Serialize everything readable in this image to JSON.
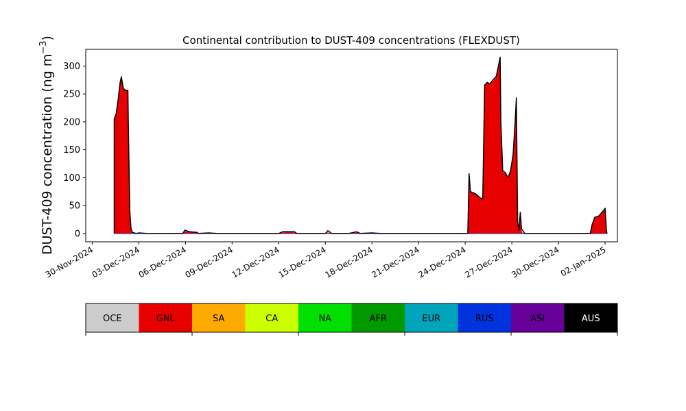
{
  "chart_data": {
    "type": "area",
    "title": "Continental contribution to DUST-409 concentrations (FLEXDUST)",
    "ylabel_main": "DUST-409 concentration (ng m",
    "ylabel_sup": "−3",
    "ylabel_close": ")",
    "xlabel": "",
    "ylim": [
      -15,
      330
    ],
    "xlim": [
      "2024-11-29T14:00",
      "2025-01-02T19:00"
    ],
    "x_ticks": [
      "2024-11-30",
      "2024-12-03",
      "2024-12-06",
      "2024-12-09",
      "2024-12-12",
      "2024-12-15",
      "2024-12-18",
      "2024-12-21",
      "2024-12-24",
      "2024-12-27",
      "2024-12-30",
      "2025-01-02"
    ],
    "x_tick_labels": [
      "30-Nov-2024",
      "03-Dec-2024",
      "06-Dec-2024",
      "09-Dec-2024",
      "12-Dec-2024",
      "15-Dec-2024",
      "18-Dec-2024",
      "21-Dec-2024",
      "24-Dec-2024",
      "27-Dec-2024",
      "30-Dec-2024",
      "02-Jan-2025"
    ],
    "y_ticks": [
      0,
      50,
      100,
      150,
      200,
      250,
      300
    ],
    "y_tick_labels": [
      "0",
      "50",
      "100",
      "150",
      "200",
      "250",
      "300"
    ],
    "legend_placement": "below",
    "grid": false,
    "series": [
      {
        "name": "GNL",
        "color": "#e60000",
        "points": [
          [
            "2024-12-01T10:00",
            0
          ],
          [
            "2024-12-01T10:00",
            205
          ],
          [
            "2024-12-01T13:00",
            215
          ],
          [
            "2024-12-01T16:00",
            240
          ],
          [
            "2024-12-01T19:00",
            270
          ],
          [
            "2024-12-01T21:00",
            280
          ],
          [
            "2024-12-02T00:00",
            260
          ],
          [
            "2024-12-02T04:00",
            256
          ],
          [
            "2024-12-02T07:00",
            256
          ],
          [
            "2024-12-02T08:00",
            180
          ],
          [
            "2024-12-02T10:00",
            40
          ],
          [
            "2024-12-02T12:00",
            5
          ],
          [
            "2024-12-02T14:00",
            0
          ],
          [
            "2024-12-05T20:00",
            0
          ],
          [
            "2024-12-05T23:00",
            4
          ],
          [
            "2024-12-06T06:00",
            3
          ],
          [
            "2024-12-06T18:00",
            2
          ],
          [
            "2024-12-06T20:00",
            0
          ],
          [
            "2024-12-12T00:00",
            0
          ],
          [
            "2024-12-12T06:00",
            2
          ],
          [
            "2024-12-12T18:00",
            2.5
          ],
          [
            "2024-12-13T00:00",
            2
          ],
          [
            "2024-12-13T04:00",
            0
          ],
          [
            "2024-12-15T00:00",
            0
          ],
          [
            "2024-12-15T04:00",
            2
          ],
          [
            "2024-12-15T10:00",
            0
          ],
          [
            "2024-12-16T12:00",
            0
          ],
          [
            "2024-12-17T00:00",
            2
          ],
          [
            "2024-12-17T06:00",
            0
          ],
          [
            "2024-12-24T04:00",
            0
          ],
          [
            "2024-12-24T06:00",
            90
          ],
          [
            "2024-12-24T08:00",
            75
          ],
          [
            "2024-12-24T16:00",
            70
          ],
          [
            "2024-12-25T00:00",
            62
          ],
          [
            "2024-12-25T03:00",
            62
          ],
          [
            "2024-12-25T06:00",
            265
          ],
          [
            "2024-12-25T10:00",
            270
          ],
          [
            "2024-12-25T14:00",
            268
          ],
          [
            "2024-12-25T18:00",
            272
          ],
          [
            "2024-12-26T00:00",
            280
          ],
          [
            "2024-12-26T06:00",
            310
          ],
          [
            "2024-12-26T07:00",
            200
          ],
          [
            "2024-12-26T10:00",
            110
          ],
          [
            "2024-12-26T14:00",
            108
          ],
          [
            "2024-12-26T18:00",
            100
          ],
          [
            "2024-12-26T22:00",
            110
          ],
          [
            "2024-12-27T02:00",
            140
          ],
          [
            "2024-12-27T05:00",
            200
          ],
          [
            "2024-12-27T07:00",
            240
          ],
          [
            "2024-12-27T09:00",
            20
          ],
          [
            "2024-12-27T11:00",
            5
          ],
          [
            "2024-12-27T13:00",
            35
          ],
          [
            "2024-12-27T15:00",
            5
          ],
          [
            "2024-12-27T17:00",
            0
          ],
          [
            "2025-01-01T01:00",
            0
          ],
          [
            "2025-01-01T04:00",
            15
          ],
          [
            "2025-01-01T08:00",
            28
          ],
          [
            "2025-01-01T14:00",
            30
          ],
          [
            "2025-01-01T20:00",
            38
          ],
          [
            "2025-01-02T00:00",
            42
          ],
          [
            "2025-01-02T02:00",
            5
          ],
          [
            "2025-01-02T03:00",
            0
          ]
        ]
      }
    ],
    "total_line": {
      "color": "#000000",
      "points": [
        [
          "2024-12-01T10:00",
          0
        ],
        [
          "2024-12-01T10:00",
          205
        ],
        [
          "2024-12-01T13:00",
          215
        ],
        [
          "2024-12-01T16:00",
          240
        ],
        [
          "2024-12-01T19:00",
          270
        ],
        [
          "2024-12-01T21:00",
          281
        ],
        [
          "2024-12-02T00:00",
          260
        ],
        [
          "2024-12-02T04:00",
          256
        ],
        [
          "2024-12-02T07:00",
          257
        ],
        [
          "2024-12-02T08:00",
          180
        ],
        [
          "2024-12-02T10:00",
          40
        ],
        [
          "2024-12-02T12:00",
          8
        ],
        [
          "2024-12-02T14:00",
          2
        ],
        [
          "2024-12-02T20:00",
          0
        ],
        [
          "2024-12-03T00:00",
          1
        ],
        [
          "2024-12-03T12:00",
          0
        ],
        [
          "2024-12-05T20:00",
          0
        ],
        [
          "2024-12-05T23:00",
          6
        ],
        [
          "2024-12-06T06:00",
          3
        ],
        [
          "2024-12-06T18:00",
          2
        ],
        [
          "2024-12-06T20:00",
          0
        ],
        [
          "2024-12-07T12:00",
          1
        ],
        [
          "2024-12-08T00:00",
          0
        ],
        [
          "2024-12-12T00:00",
          0
        ],
        [
          "2024-12-12T06:00",
          3
        ],
        [
          "2024-12-12T18:00",
          3
        ],
        [
          "2024-12-13T00:00",
          3
        ],
        [
          "2024-12-13T04:00",
          0
        ],
        [
          "2024-12-15T00:00",
          0
        ],
        [
          "2024-12-15T04:00",
          5
        ],
        [
          "2024-12-15T10:00",
          0
        ],
        [
          "2024-12-16T12:00",
          0
        ],
        [
          "2024-12-17T00:00",
          3
        ],
        [
          "2024-12-17T06:00",
          0
        ],
        [
          "2024-12-18T00:00",
          1
        ],
        [
          "2024-12-18T12:00",
          0
        ],
        [
          "2024-12-23T12:00",
          0
        ],
        [
          "2024-12-24T04:00",
          0
        ],
        [
          "2024-12-24T06:00",
          107
        ],
        [
          "2024-12-24T08:00",
          75
        ],
        [
          "2024-12-24T16:00",
          71
        ],
        [
          "2024-12-25T00:00",
          63
        ],
        [
          "2024-12-25T03:00",
          62
        ],
        [
          "2024-12-25T06:00",
          266
        ],
        [
          "2024-12-25T10:00",
          271
        ],
        [
          "2024-12-25T14:00",
          268
        ],
        [
          "2024-12-25T18:00",
          274
        ],
        [
          "2024-12-26T00:00",
          282
        ],
        [
          "2024-12-26T06:00",
          316
        ],
        [
          "2024-12-26T07:00",
          200
        ],
        [
          "2024-12-26T10:00",
          112
        ],
        [
          "2024-12-26T14:00",
          109
        ],
        [
          "2024-12-26T18:00",
          100
        ],
        [
          "2024-12-26T22:00",
          112
        ],
        [
          "2024-12-27T02:00",
          142
        ],
        [
          "2024-12-27T05:00",
          200
        ],
        [
          "2024-12-27T07:00",
          243
        ],
        [
          "2024-12-27T09:00",
          20
        ],
        [
          "2024-12-27T11:00",
          6
        ],
        [
          "2024-12-27T13:00",
          38
        ],
        [
          "2024-12-27T15:00",
          8
        ],
        [
          "2024-12-27T17:00",
          5
        ],
        [
          "2024-12-27T20:00",
          0
        ],
        [
          "2025-01-01T01:00",
          0
        ],
        [
          "2025-01-01T04:00",
          16
        ],
        [
          "2025-01-01T08:00",
          29
        ],
        [
          "2025-01-01T14:00",
          31
        ],
        [
          "2025-01-01T20:00",
          39
        ],
        [
          "2025-01-02T00:00",
          45
        ],
        [
          "2025-01-02T02:00",
          5
        ],
        [
          "2025-01-02T03:00",
          0
        ]
      ]
    },
    "minor_series_color": "#0033dd",
    "legend": [
      {
        "label": "OCE",
        "color": "#cccccc",
        "text_color": "#000000"
      },
      {
        "label": "GNL",
        "color": "#e60000",
        "text_color": "#000000"
      },
      {
        "label": "SA",
        "color": "#ffaa00",
        "text_color": "#000000"
      },
      {
        "label": "CA",
        "color": "#ccff00",
        "text_color": "#000000"
      },
      {
        "label": "NA",
        "color": "#00e000",
        "text_color": "#000000"
      },
      {
        "label": "AFR",
        "color": "#009900",
        "text_color": "#000000"
      },
      {
        "label": "EUR",
        "color": "#00a5bb",
        "text_color": "#000000"
      },
      {
        "label": "RUS",
        "color": "#0033dd",
        "text_color": "#000000"
      },
      {
        "label": "ASI",
        "color": "#660099",
        "text_color": "#000000"
      },
      {
        "label": "AUS",
        "color": "#000000",
        "text_color": "#ffffff"
      }
    ]
  }
}
